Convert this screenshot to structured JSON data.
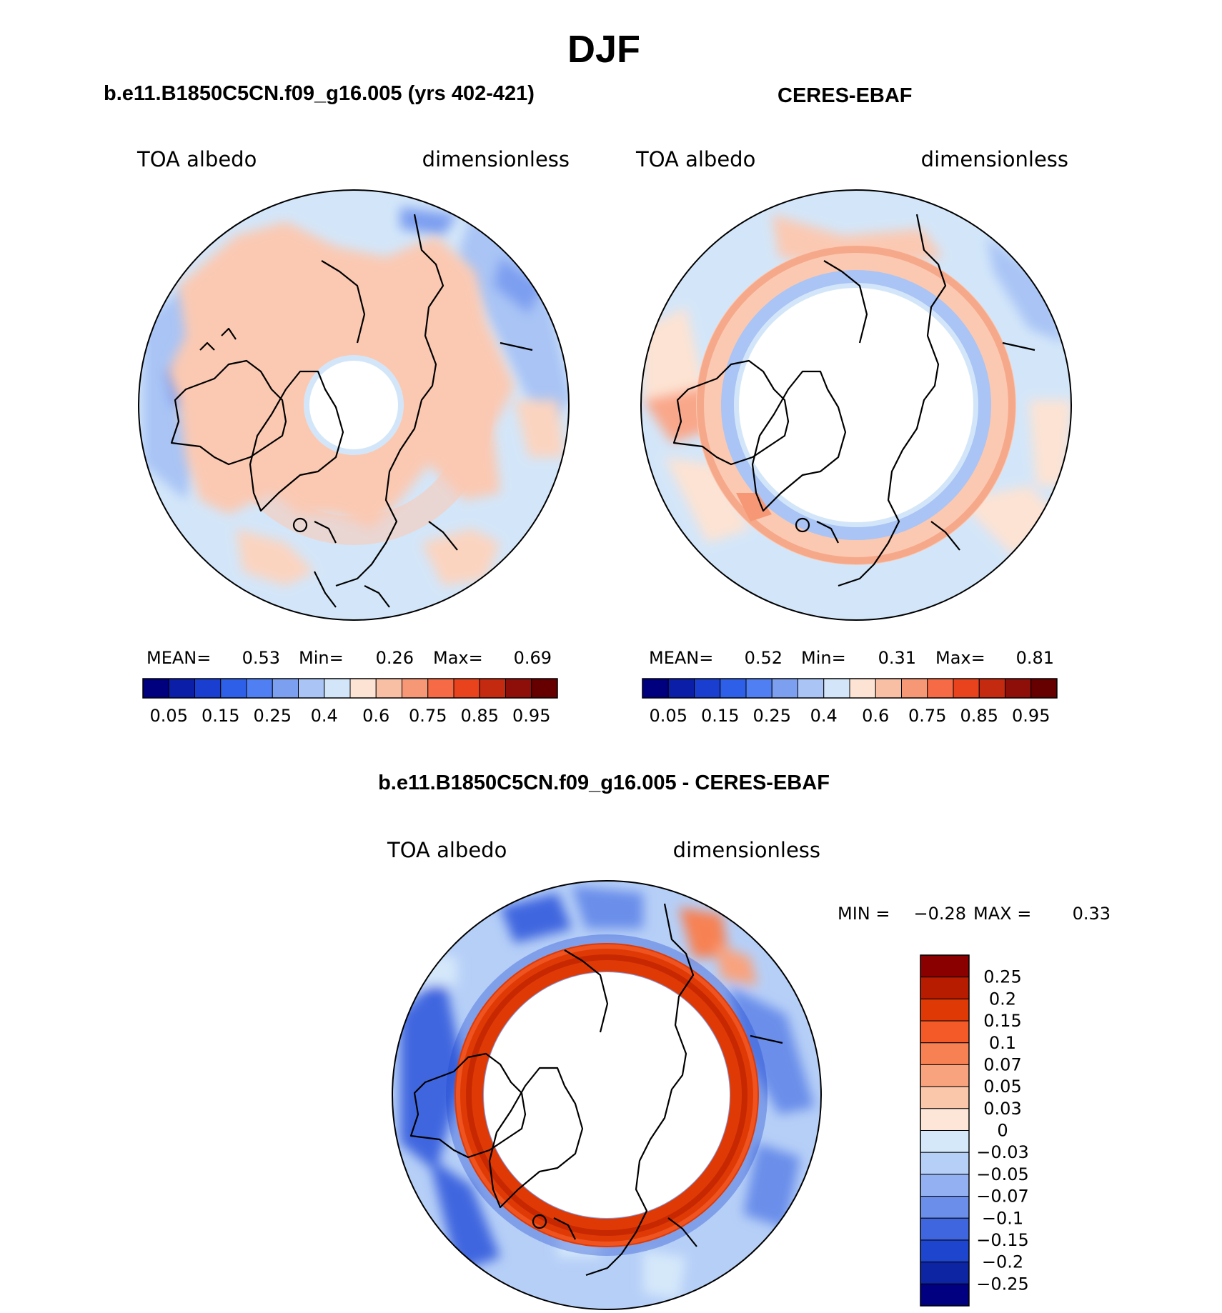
{
  "figure": {
    "season": "DJF",
    "left_title": "b.e11.B1850C5CN.f09_g16.005 (yrs 402-421)",
    "right_title": "CERES-EBAF",
    "diff_title": "b.e11.B1850C5CN.f09_g16.005 - CERES-EBAF"
  },
  "panels": {
    "model": {
      "variable": "TOA albedo",
      "units": "dimensionless",
      "mean_label": "MEAN=",
      "mean": "0.53",
      "min_label": "Min=",
      "min": "0.26",
      "max_label": "Max=",
      "max": "0.69"
    },
    "obs": {
      "variable": "TOA albedo",
      "units": "dimensionless",
      "mean_label": "MEAN=",
      "mean": "0.52",
      "min_label": "Min=",
      "min": "0.31",
      "max_label": "Max=",
      "max": "0.81"
    },
    "diff": {
      "variable": "TOA albedo",
      "units": "dimensionless",
      "min_label": "MIN =",
      "min": "−0.28",
      "max_label": "MAX =",
      "max": "0.33"
    }
  },
  "abs_colorbar": {
    "colors": [
      "#00007f",
      "#0a1ea8",
      "#1a3ecf",
      "#2e5fe8",
      "#4f7ff2",
      "#7d9ff0",
      "#a9c4f5",
      "#d3e6f9",
      "#fde3d3",
      "#f9bfa5",
      "#f69876",
      "#f66a45",
      "#e8431d",
      "#c42a10",
      "#8e0f09",
      "#660000"
    ],
    "tick_labels": [
      "0.05",
      "0.15",
      "0.25",
      "0.4",
      "0.6",
      "0.75",
      "0.85",
      "0.95"
    ]
  },
  "diff_colorbar": {
    "colors": [
      "#8a0000",
      "#b81c00",
      "#df3a06",
      "#f35a27",
      "#f78153",
      "#f9a37e",
      "#fbc7ab",
      "#fde6d8",
      "#d5e8fa",
      "#b6cff7",
      "#93b1f2",
      "#6b8eea",
      "#3f66df",
      "#1d45cd",
      "#0e25a3",
      "#000080"
    ],
    "tick_labels": [
      "0.25",
      "0.2",
      "0.15",
      "0.1",
      "0.07",
      "0.05",
      "0.03",
      "0",
      "−0.03",
      "−0.05",
      "−0.07",
      "−0.1",
      "−0.15",
      "−0.2",
      "−0.25"
    ]
  }
}
